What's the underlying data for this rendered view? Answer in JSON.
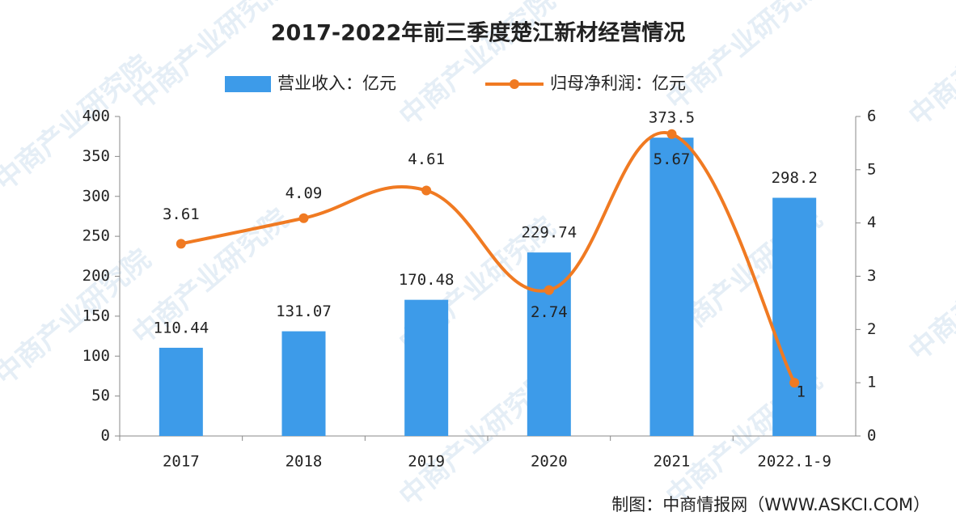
{
  "chart_data": {
    "type": "bar-line",
    "title": "2017-2022年前三季度楚江新材经营情况",
    "categories": [
      "2017",
      "2018",
      "2019",
      "2020",
      "2021",
      "2022.1-9"
    ],
    "series": [
      {
        "name": "营业收入：亿元",
        "type": "bar",
        "color": "#3d9be9",
        "values": [
          110.44,
          131.07,
          170.48,
          229.74,
          373.5,
          298.2
        ]
      },
      {
        "name": "归母净利润：亿元",
        "type": "line",
        "color": "#f07a22",
        "axis": "y2",
        "values": [
          3.61,
          4.09,
          4.61,
          2.74,
          5.67,
          1
        ]
      }
    ],
    "ylim": [
      0,
      400
    ],
    "yticks": [
      0,
      50,
      100,
      150,
      200,
      250,
      300,
      350,
      400
    ],
    "y2lim": [
      0,
      6
    ],
    "y2ticks": [
      0,
      1,
      2,
      3,
      4,
      5,
      6
    ],
    "source": "制图：中商情报网（WWW.ASKCI.COM）",
    "watermark": "中商产业研究院"
  }
}
